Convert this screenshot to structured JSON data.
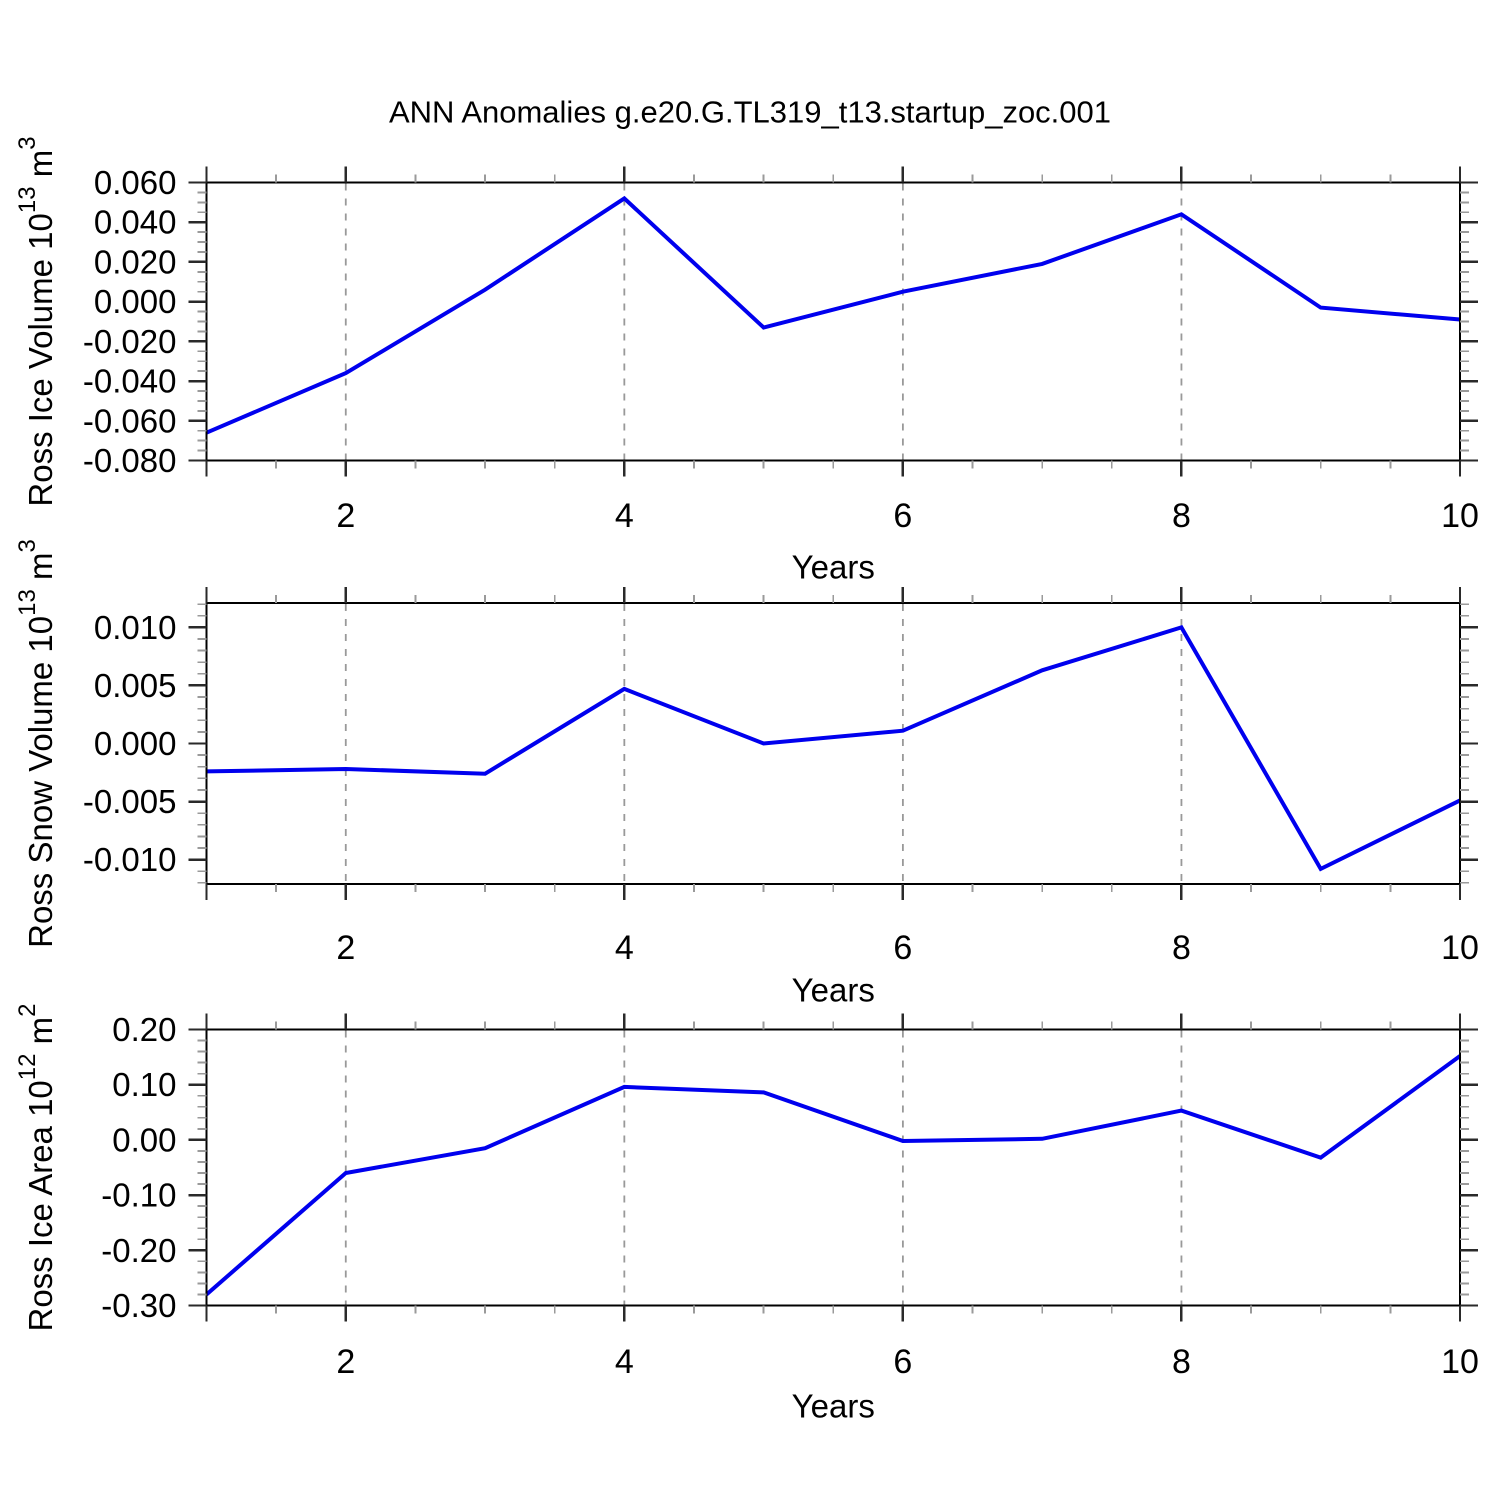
{
  "figure": {
    "title": "ANN Anomalies g.e20.G.TL319_t13.startup_zoc.001"
  },
  "style": {
    "background": "#ffffff",
    "line_color": "#0000ee",
    "grid_color": "#999999",
    "frame_color": "#000000",
    "tick_major_color": "#2a2a2a",
    "tick_minor_color": "#9a9a9a",
    "text_color": "#000000"
  },
  "chart_data": [
    {
      "type": "line",
      "name": "ross-ice-volume",
      "title": "",
      "ylabel_plain": "Ross Ice Volume 10^13 m^3",
      "ylabel_segments": [
        {
          "t": "Ross Ice Volume 10"
        },
        {
          "t": "13",
          "sup": true
        },
        {
          "t": " m"
        },
        {
          "t": "3",
          "sup": true
        }
      ],
      "xlabel": "Years",
      "x": [
        1,
        2,
        3,
        4,
        5,
        6,
        7,
        8,
        9,
        10
      ],
      "values": [
        -0.066,
        -0.036,
        0.006,
        0.052,
        -0.013,
        0.005,
        0.019,
        0.044,
        -0.003,
        -0.009
      ],
      "xlim": [
        1,
        10
      ],
      "ylim": [
        -0.08,
        0.06
      ],
      "y_major": [
        {
          "v": 0.06,
          "label": "0.060"
        },
        {
          "v": 0.04,
          "label": "0.040"
        },
        {
          "v": 0.02,
          "label": "0.020"
        },
        {
          "v": 0.0,
          "label": "0.000"
        },
        {
          "v": -0.02,
          "label": "-0.020"
        },
        {
          "v": -0.04,
          "label": "-0.040"
        },
        {
          "v": -0.06,
          "label": "-0.060"
        },
        {
          "v": -0.08,
          "label": "-0.080"
        }
      ],
      "y_minor_step": 0.005,
      "x_major": [
        {
          "v": 2,
          "label": "2"
        },
        {
          "v": 4,
          "label": "4"
        },
        {
          "v": 6,
          "label": "6"
        },
        {
          "v": 8,
          "label": "8"
        },
        {
          "v": 10,
          "label": "10"
        }
      ],
      "x_minor_step": 0.5,
      "x_grid_years": [
        2,
        4,
        6,
        8
      ],
      "grid": "vertical-dashed",
      "legend": "none"
    },
    {
      "type": "line",
      "name": "ross-snow-volume",
      "title": "",
      "ylabel_plain": "Ross Snow Volume 10^13 m^3",
      "ylabel_segments": [
        {
          "t": "Ross Snow Volume 10"
        },
        {
          "t": "13",
          "sup": true
        },
        {
          "t": " m"
        },
        {
          "t": "3",
          "sup": true
        }
      ],
      "xlabel": "Years",
      "x": [
        1,
        2,
        3,
        4,
        5,
        6,
        7,
        8,
        9,
        10
      ],
      "values": [
        -0.0024,
        -0.0022,
        -0.0026,
        0.0047,
        0.0,
        0.0011,
        0.0063,
        0.01,
        -0.0108,
        -0.0049
      ],
      "xlim": [
        1,
        10
      ],
      "ylim": [
        -0.0121,
        0.0121
      ],
      "y_major": [
        {
          "v": 0.01,
          "label": "0.010"
        },
        {
          "v": 0.005,
          "label": "0.005"
        },
        {
          "v": 0.0,
          "label": "0.000"
        },
        {
          "v": -0.005,
          "label": "-0.005"
        },
        {
          "v": -0.01,
          "label": "-0.010"
        }
      ],
      "y_minor_step": 0.001,
      "x_major": [
        {
          "v": 2,
          "label": "2"
        },
        {
          "v": 4,
          "label": "4"
        },
        {
          "v": 6,
          "label": "6"
        },
        {
          "v": 8,
          "label": "8"
        },
        {
          "v": 10,
          "label": "10"
        }
      ],
      "x_minor_step": 0.5,
      "x_grid_years": [
        2,
        4,
        6,
        8
      ],
      "grid": "vertical-dashed",
      "legend": "none"
    },
    {
      "type": "line",
      "name": "ross-ice-area",
      "title": "",
      "ylabel_plain": "Ross Ice Area 10^12 m^2",
      "ylabel_segments": [
        {
          "t": "Ross Ice Area 10"
        },
        {
          "t": "12",
          "sup": true
        },
        {
          "t": " m"
        },
        {
          "t": "2",
          "sup": true
        }
      ],
      "xlabel": "Years",
      "x": [
        1,
        2,
        3,
        4,
        5,
        6,
        7,
        8,
        9,
        10
      ],
      "values": [
        -0.28,
        -0.06,
        -0.015,
        0.096,
        0.086,
        -0.002,
        0.002,
        0.053,
        -0.032,
        0.152
      ],
      "xlim": [
        1,
        10
      ],
      "ylim": [
        -0.3,
        0.2
      ],
      "y_major": [
        {
          "v": 0.2,
          "label": "0.20"
        },
        {
          "v": 0.1,
          "label": "0.10"
        },
        {
          "v": 0.0,
          "label": "0.00"
        },
        {
          "v": -0.1,
          "label": "-0.10"
        },
        {
          "v": -0.2,
          "label": "-0.20"
        },
        {
          "v": -0.3,
          "label": "-0.30"
        }
      ],
      "y_minor_step": 0.02,
      "x_major": [
        {
          "v": 2,
          "label": "2"
        },
        {
          "v": 4,
          "label": "4"
        },
        {
          "v": 6,
          "label": "6"
        },
        {
          "v": 8,
          "label": "8"
        },
        {
          "v": 10,
          "label": "10"
        }
      ],
      "x_minor_step": 0.5,
      "x_grid_years": [
        2,
        4,
        6,
        8
      ],
      "grid": "vertical-dashed",
      "legend": "none"
    }
  ]
}
